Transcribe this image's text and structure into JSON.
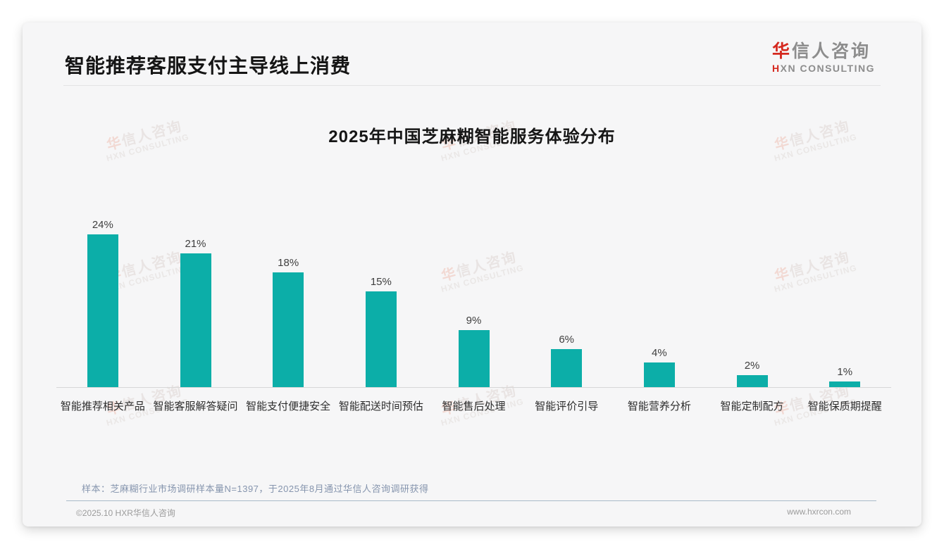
{
  "page": {
    "title": "智能推荐客服支付主导线上消费"
  },
  "logo": {
    "cn_first": "华",
    "cn_rest": "信人咨询",
    "en_first": "H",
    "en_rest": "XN CONSULTING"
  },
  "watermark": {
    "cn_first": "华",
    "cn_rest": "信人咨询",
    "en": "HXN CONSULTING"
  },
  "chart_data": {
    "type": "bar",
    "title": "2025年中国芝麻糊智能服务体验分布",
    "categories": [
      "智能推荐相关产品",
      "智能客服解答疑问",
      "智能支付便捷安全",
      "智能配送时间预估",
      "智能售后处理",
      "智能评价引导",
      "智能营养分析",
      "智能定制配方",
      "智能保质期提醒"
    ],
    "values": [
      24,
      21,
      18,
      15,
      9,
      6,
      4,
      2,
      1
    ],
    "unit": "%",
    "bar_color": "#0caea8",
    "value_label_position": "above-bar",
    "ylim": [
      0,
      26
    ],
    "grid": false,
    "legend": false,
    "xlabel": "",
    "ylabel": ""
  },
  "footer": {
    "note": "样本：芝麻糊行业市场调研样本量N=1397，于2025年8月通过华信人咨询调研获得",
    "copyright": "©2025.10 HXR华信人咨询",
    "website": "www.hxrcon.com"
  },
  "colors": {
    "accent_teal": "#0caea8",
    "brand_red": "#d5281e",
    "note_blue_gray": "#8695ae"
  }
}
